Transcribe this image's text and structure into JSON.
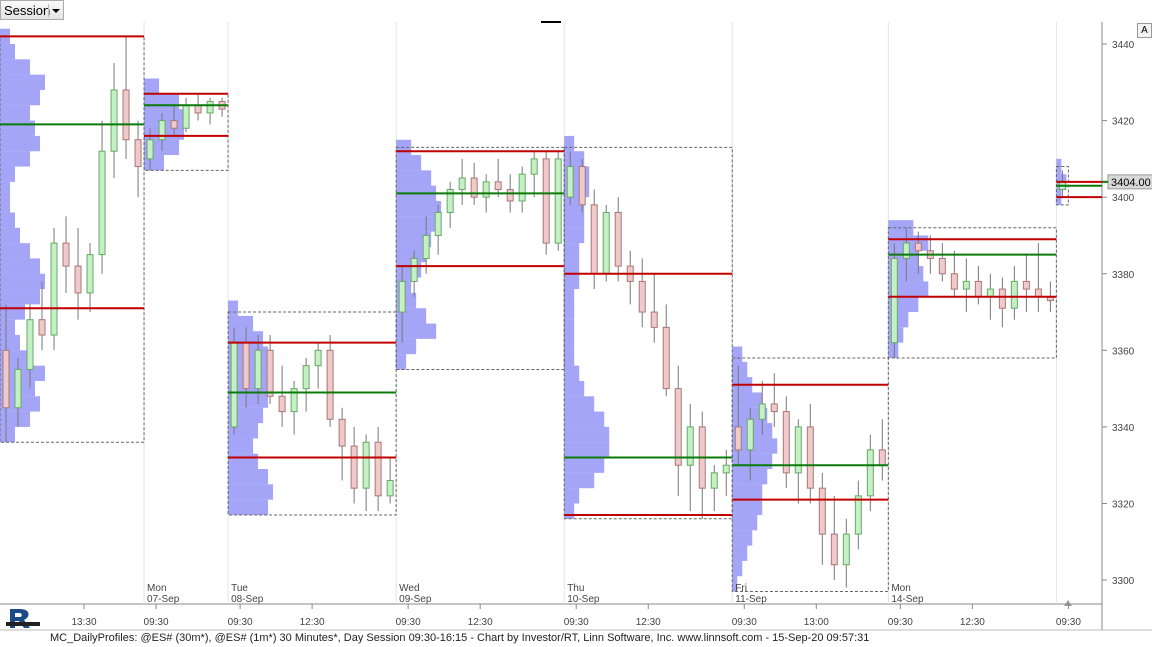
{
  "toolbar": {
    "session_button": "Session",
    "autoscale_button": "A"
  },
  "footer": "MC_DailyProfiles: @ES# (30m*), @ES# (1m*) 30 Minutes*, Day Session 09:30-16:15 - Chart by Investor/RT, Linn Software, Inc. www.linnsoft.com - 15-Sep-20 09:57:31",
  "chart_data": {
    "type": "candlestick",
    "ylim": [
      3293.75,
      3445.75
    ],
    "yticks": [
      3300,
      3320,
      3340,
      3360,
      3380,
      3400,
      3420,
      3440
    ],
    "last_price": {
      "value": 3404,
      "label": "3404.00"
    },
    "xlim": [
      0,
      91.8
    ],
    "xticks": [
      {
        "value": 7,
        "label": "13:30"
      },
      {
        "value": 13,
        "label": "09:30"
      },
      {
        "value": 20,
        "label": "09:30"
      },
      {
        "value": 26,
        "label": "12:30"
      },
      {
        "value": 34,
        "label": "09:30"
      },
      {
        "value": 40,
        "label": "12:30"
      },
      {
        "value": 48,
        "label": "09:30"
      },
      {
        "value": 54,
        "label": "12:30"
      },
      {
        "value": 62,
        "label": "09:30"
      },
      {
        "value": 68,
        "label": "13:00"
      },
      {
        "value": 75,
        "label": "09:30"
      },
      {
        "value": 81,
        "label": "12:30"
      },
      {
        "value": 89,
        "label": "09:30"
      }
    ],
    "profile_step": 4,
    "sessions": [
      {
        "start": 0,
        "high": 3442,
        "low": 3336,
        "vah": 3442,
        "poc": 3419,
        "val": 3371,
        "profile_low": 3336,
        "profile": [
          3,
          6,
          8,
          7,
          9,
          6,
          4,
          3,
          5,
          8,
          9,
          8,
          6,
          4,
          3,
          2,
          2,
          3,
          6,
          8,
          7,
          6,
          8,
          9,
          6,
          3,
          2
        ],
        "candles": [
          [
            3360,
            3372,
            3336,
            3345
          ],
          [
            3345,
            3358,
            3340,
            3355
          ],
          [
            3355,
            3372,
            3350,
            3368
          ],
          [
            3368,
            3378,
            3360,
            3364
          ],
          [
            3364,
            3392,
            3360,
            3388
          ],
          [
            3388,
            3395,
            3375,
            3382
          ],
          [
            3382,
            3392,
            3368,
            3375
          ],
          [
            3375,
            3388,
            3370,
            3385
          ],
          [
            3385,
            3420,
            3380,
            3412
          ],
          [
            3412,
            3435,
            3405,
            3428
          ],
          [
            3428,
            3442,
            3410,
            3415
          ],
          [
            3415,
            3420,
            3400,
            3408
          ]
        ]
      },
      {
        "day": "Mon",
        "date": "07-Sep",
        "start": 12,
        "high": 3427,
        "low": 3407,
        "vah": 3427,
        "poc": 3424,
        "val": 3416,
        "profile_low": 3407,
        "profile": [
          4,
          7,
          8,
          9,
          7,
          3
        ],
        "candles": [
          [
            3410,
            3418,
            3407,
            3415
          ],
          [
            3415,
            3422,
            3412,
            3420
          ],
          [
            3420,
            3424,
            3416,
            3418
          ],
          [
            3418,
            3426,
            3417,
            3424
          ],
          [
            3424,
            3427,
            3420,
            3422
          ],
          [
            3422,
            3426,
            3419,
            3425
          ],
          [
            3425,
            3426,
            3421,
            3423
          ]
        ]
      },
      {
        "day": "Tue",
        "date": "08-Sep",
        "start": 19,
        "high": 3370,
        "low": 3317,
        "vah": 3362,
        "poc": 3349,
        "val": 3332,
        "profile_low": 3317,
        "profile": [
          8,
          9,
          8,
          6,
          5,
          6,
          7,
          8,
          9,
          9,
          8,
          7,
          5,
          2
        ],
        "candles": [
          [
            3340,
            3366,
            3338,
            3362
          ],
          [
            3362,
            3366,
            3345,
            3350
          ],
          [
            3350,
            3364,
            3346,
            3360
          ],
          [
            3360,
            3364,
            3346,
            3348
          ],
          [
            3348,
            3356,
            3340,
            3344
          ],
          [
            3344,
            3352,
            3338,
            3350
          ],
          [
            3350,
            3358,
            3344,
            3356
          ],
          [
            3356,
            3362,
            3350,
            3360
          ],
          [
            3360,
            3364,
            3340,
            3342
          ],
          [
            3342,
            3345,
            3326,
            3335
          ],
          [
            3335,
            3340,
            3320,
            3324
          ],
          [
            3324,
            3338,
            3318,
            3336
          ],
          [
            3336,
            3340,
            3318,
            3322
          ],
          [
            3322,
            3332,
            3320,
            3326
          ]
        ]
      },
      {
        "day": "Wed",
        "date": "09-Sep",
        "start": 33,
        "high": 3413,
        "low": 3355,
        "vah": 3412,
        "poc": 3401,
        "val": 3382,
        "profile_low": 3355,
        "profile": [
          2,
          4,
          8,
          6,
          4,
          3,
          5,
          6,
          7,
          8,
          9,
          8,
          7,
          5,
          3
        ],
        "candles": [
          [
            3370,
            3382,
            3362,
            3378
          ],
          [
            3378,
            3386,
            3374,
            3384
          ],
          [
            3384,
            3395,
            3380,
            3390
          ],
          [
            3390,
            3398,
            3385,
            3396
          ],
          [
            3396,
            3404,
            3392,
            3402
          ],
          [
            3402,
            3410,
            3398,
            3405
          ],
          [
            3405,
            3409,
            3398,
            3400
          ],
          [
            3400,
            3406,
            3396,
            3404
          ],
          [
            3404,
            3410,
            3400,
            3402
          ],
          [
            3402,
            3406,
            3396,
            3399
          ],
          [
            3399,
            3408,
            3396,
            3406
          ],
          [
            3406,
            3412,
            3400,
            3410
          ],
          [
            3410,
            3412,
            3385,
            3388
          ],
          [
            3388,
            3412,
            3386,
            3410
          ]
        ]
      },
      {
        "day": "Thu",
        "date": "10-Sep",
        "start": 47,
        "high": 3413,
        "low": 3316,
        "vah": 3380,
        "poc": 3332,
        "val": 3317,
        "profile_low": 3316,
        "profile": [
          2,
          3,
          6,
          8,
          9,
          9,
          8,
          6,
          4,
          3,
          2,
          2,
          2,
          2,
          2,
          3,
          3,
          3,
          4,
          4,
          4,
          5,
          5,
          4,
          2
        ],
        "candles": [
          [
            3400,
            3412,
            3398,
            3408
          ],
          [
            3408,
            3410,
            3396,
            3398
          ],
          [
            3398,
            3402,
            3376,
            3380
          ],
          [
            3380,
            3398,
            3378,
            3396
          ],
          [
            3396,
            3400,
            3378,
            3382
          ],
          [
            3382,
            3386,
            3372,
            3378
          ],
          [
            3378,
            3384,
            3366,
            3370
          ],
          [
            3370,
            3380,
            3362,
            3366
          ],
          [
            3366,
            3372,
            3348,
            3350
          ],
          [
            3350,
            3356,
            3322,
            3330
          ],
          [
            3330,
            3346,
            3318,
            3340
          ],
          [
            3340,
            3344,
            3316,
            3324
          ],
          [
            3324,
            3330,
            3318,
            3328
          ],
          [
            3328,
            3334,
            3322,
            3330
          ]
        ]
      },
      {
        "day": "Fri",
        "date": "11-Sep",
        "start": 61,
        "high": 3358,
        "low": 3297,
        "vah": 3351,
        "poc": 3330,
        "val": 3321,
        "profile_low": 3297,
        "profile": [
          1,
          2,
          3,
          4,
          5,
          6,
          6,
          7,
          8,
          9,
          8,
          7,
          6,
          4,
          3,
          2
        ],
        "candles": [
          [
            3340,
            3356,
            3330,
            3334
          ],
          [
            3334,
            3345,
            3326,
            3342
          ],
          [
            3342,
            3352,
            3338,
            3346
          ],
          [
            3346,
            3354,
            3340,
            3344
          ],
          [
            3344,
            3348,
            3324,
            3328
          ],
          [
            3328,
            3342,
            3320,
            3340
          ],
          [
            3340,
            3346,
            3320,
            3324
          ],
          [
            3324,
            3328,
            3304,
            3312
          ],
          [
            3312,
            3322,
            3300,
            3304
          ],
          [
            3304,
            3316,
            3298,
            3312
          ],
          [
            3312,
            3326,
            3308,
            3322
          ],
          [
            3322,
            3338,
            3318,
            3334
          ],
          [
            3334,
            3342,
            3326,
            3330
          ]
        ]
      },
      {
        "day": "Mon",
        "date": "14-Sep",
        "start": 74,
        "high": 3392,
        "low": 3358,
        "vah": 3389,
        "poc": 3385,
        "val": 3374,
        "profile_low": 3358,
        "profile": [
          2,
          3,
          4,
          6,
          8,
          7,
          6,
          8,
          5
        ],
        "candles": [
          [
            3362,
            3388,
            3358,
            3384
          ],
          [
            3384,
            3392,
            3378,
            3388
          ],
          [
            3388,
            3391,
            3380,
            3386
          ],
          [
            3386,
            3390,
            3380,
            3384
          ],
          [
            3384,
            3388,
            3378,
            3380
          ],
          [
            3380,
            3386,
            3374,
            3376
          ],
          [
            3376,
            3384,
            3370,
            3378
          ],
          [
            3378,
            3382,
            3372,
            3374
          ],
          [
            3374,
            3380,
            3368,
            3376
          ],
          [
            3376,
            3379,
            3366,
            3371
          ],
          [
            3371,
            3382,
            3368,
            3378
          ],
          [
            3378,
            3385,
            3370,
            3376
          ],
          [
            3376,
            3388,
            3370,
            3374
          ],
          [
            3374,
            3378,
            3370,
            3373
          ]
        ]
      },
      {
        "start": 88,
        "high": 3408,
        "low": 3398,
        "vah": 3404,
        "poc": 3403,
        "val": 3400,
        "profile_low": 3398,
        "profile": [
          1,
          2,
          1
        ],
        "candles": [
          [
            3402,
            3407,
            3400,
            3404
          ]
        ]
      }
    ]
  }
}
